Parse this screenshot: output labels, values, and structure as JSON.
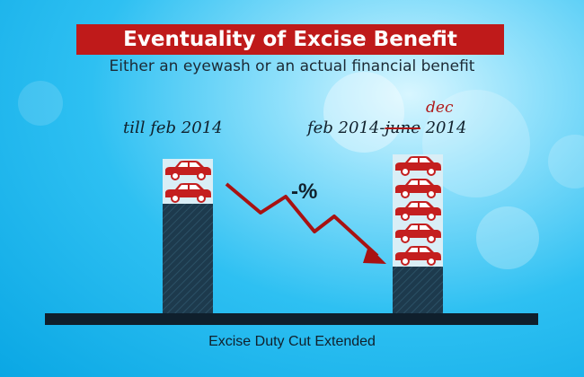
{
  "header": {
    "title": "Eventuality of Excise Benefit",
    "subtitle": "Either an eyewash or an actual financial benefit"
  },
  "periods": {
    "left": "till feb 2014",
    "right_prefix": "feb 2014-",
    "right_struck": "june",
    "right_correction": "dec",
    "right_suffix": " 2014"
  },
  "change_label": "-%",
  "footer": "Excise Duty Cut Extended",
  "colors": {
    "title_bg": "#bf1a1a",
    "bar": "#1d3a4d",
    "car": "#c41f1f",
    "arrow": "#a81212",
    "baseline": "#0f1f2c"
  },
  "chart_data": {
    "type": "bar",
    "title": "Eventuality of Excise Benefit",
    "categories": [
      "till feb 2014",
      "feb 2014-dec 2014"
    ],
    "series": [
      {
        "values": [
          2,
          5
        ]
      }
    ],
    "bar_base_relative": [
      1.0,
      0.43
    ],
    "trend": "decrease",
    "annotations": [
      "-%"
    ],
    "xlabel": "Excise Duty Cut Extended",
    "ylabel": "",
    "grid": false,
    "legend": "none"
  }
}
